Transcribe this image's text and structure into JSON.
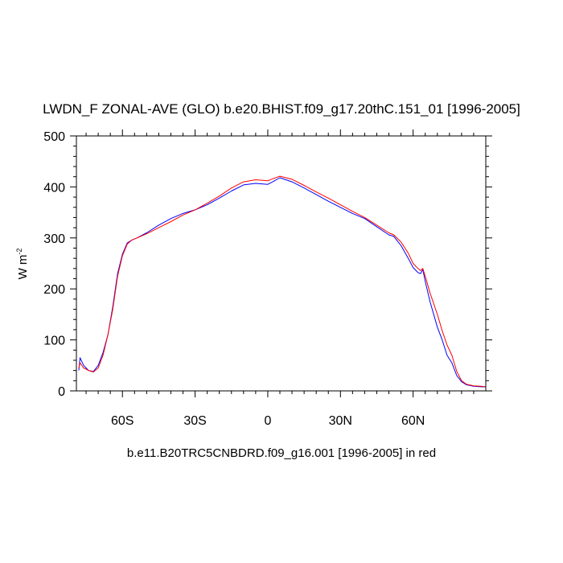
{
  "chart_data": {
    "type": "line",
    "title": "LWDN_F ZONAL-AVE (GLO) b.e20.BHIST.f09_g17.20thC.151_01 [1996-2005]",
    "xlabel": "b.e11.B20TRC5CNBDRD.f09_g16.001 [1996-2005] in red",
    "ylabel_base": "W m",
    "ylabel_exp": "-2",
    "xlim": [
      -79,
      90
    ],
    "ylim": [
      0,
      500
    ],
    "x_ticks": [
      {
        "value": -60,
        "label": "60S"
      },
      {
        "value": -30,
        "label": "30S"
      },
      {
        "value": 0,
        "label": "0"
      },
      {
        "value": 30,
        "label": "30N"
      },
      {
        "value": 60,
        "label": "60N"
      }
    ],
    "y_ticks": [
      {
        "value": 0,
        "label": "0"
      },
      {
        "value": 100,
        "label": "100"
      },
      {
        "value": 200,
        "label": "200"
      },
      {
        "value": 300,
        "label": "300"
      },
      {
        "value": 400,
        "label": "400"
      },
      {
        "value": 500,
        "label": "500"
      }
    ],
    "grid": false,
    "series": [
      {
        "color": "#0000ff",
        "x": [
          -78,
          -77.5,
          -76,
          -74,
          -72,
          -70,
          -68,
          -66,
          -64,
          -62,
          -60,
          -58,
          -56,
          -54,
          -50,
          -45,
          -40,
          -35,
          -30,
          -25,
          -20,
          -15,
          -10,
          -5,
          0,
          2,
          5,
          10,
          15,
          20,
          25,
          30,
          35,
          40,
          45,
          50,
          52,
          55,
          58,
          60,
          62,
          63,
          64,
          65,
          67,
          70,
          72,
          74,
          76,
          78,
          80,
          82,
          85,
          88,
          90
        ],
        "y": [
          40,
          65,
          50,
          40,
          38,
          50,
          75,
          110,
          165,
          230,
          268,
          290,
          296,
          300,
          310,
          325,
          338,
          348,
          355,
          365,
          378,
          392,
          404,
          407,
          405,
          410,
          418,
          410,
          398,
          385,
          372,
          360,
          348,
          338,
          322,
          306,
          303,
          285,
          260,
          242,
          232,
          230,
          238,
          215,
          175,
          125,
          100,
          70,
          55,
          30,
          18,
          12,
          9,
          8,
          8
        ]
      },
      {
        "color": "#ff0000",
        "x": [
          -78,
          -77.5,
          -76,
          -74,
          -72,
          -70,
          -68,
          -66,
          -64,
          -62,
          -60,
          -58,
          -56,
          -54,
          -50,
          -45,
          -40,
          -35,
          -30,
          -25,
          -20,
          -15,
          -10,
          -5,
          0,
          2,
          5,
          10,
          15,
          20,
          25,
          30,
          35,
          40,
          45,
          50,
          52,
          55,
          58,
          60,
          62,
          63,
          64,
          65,
          67,
          70,
          72,
          74,
          76,
          78,
          80,
          82,
          85,
          88,
          90
        ],
        "y": [
          45,
          55,
          45,
          40,
          37,
          45,
          70,
          110,
          160,
          225,
          265,
          288,
          296,
          300,
          308,
          320,
          332,
          345,
          355,
          368,
          382,
          398,
          410,
          414,
          412,
          416,
          421,
          415,
          403,
          390,
          378,
          365,
          352,
          340,
          325,
          310,
          306,
          292,
          270,
          250,
          240,
          236,
          240,
          225,
          192,
          150,
          118,
          90,
          70,
          38,
          20,
          13,
          10,
          9,
          8
        ]
      }
    ]
  }
}
